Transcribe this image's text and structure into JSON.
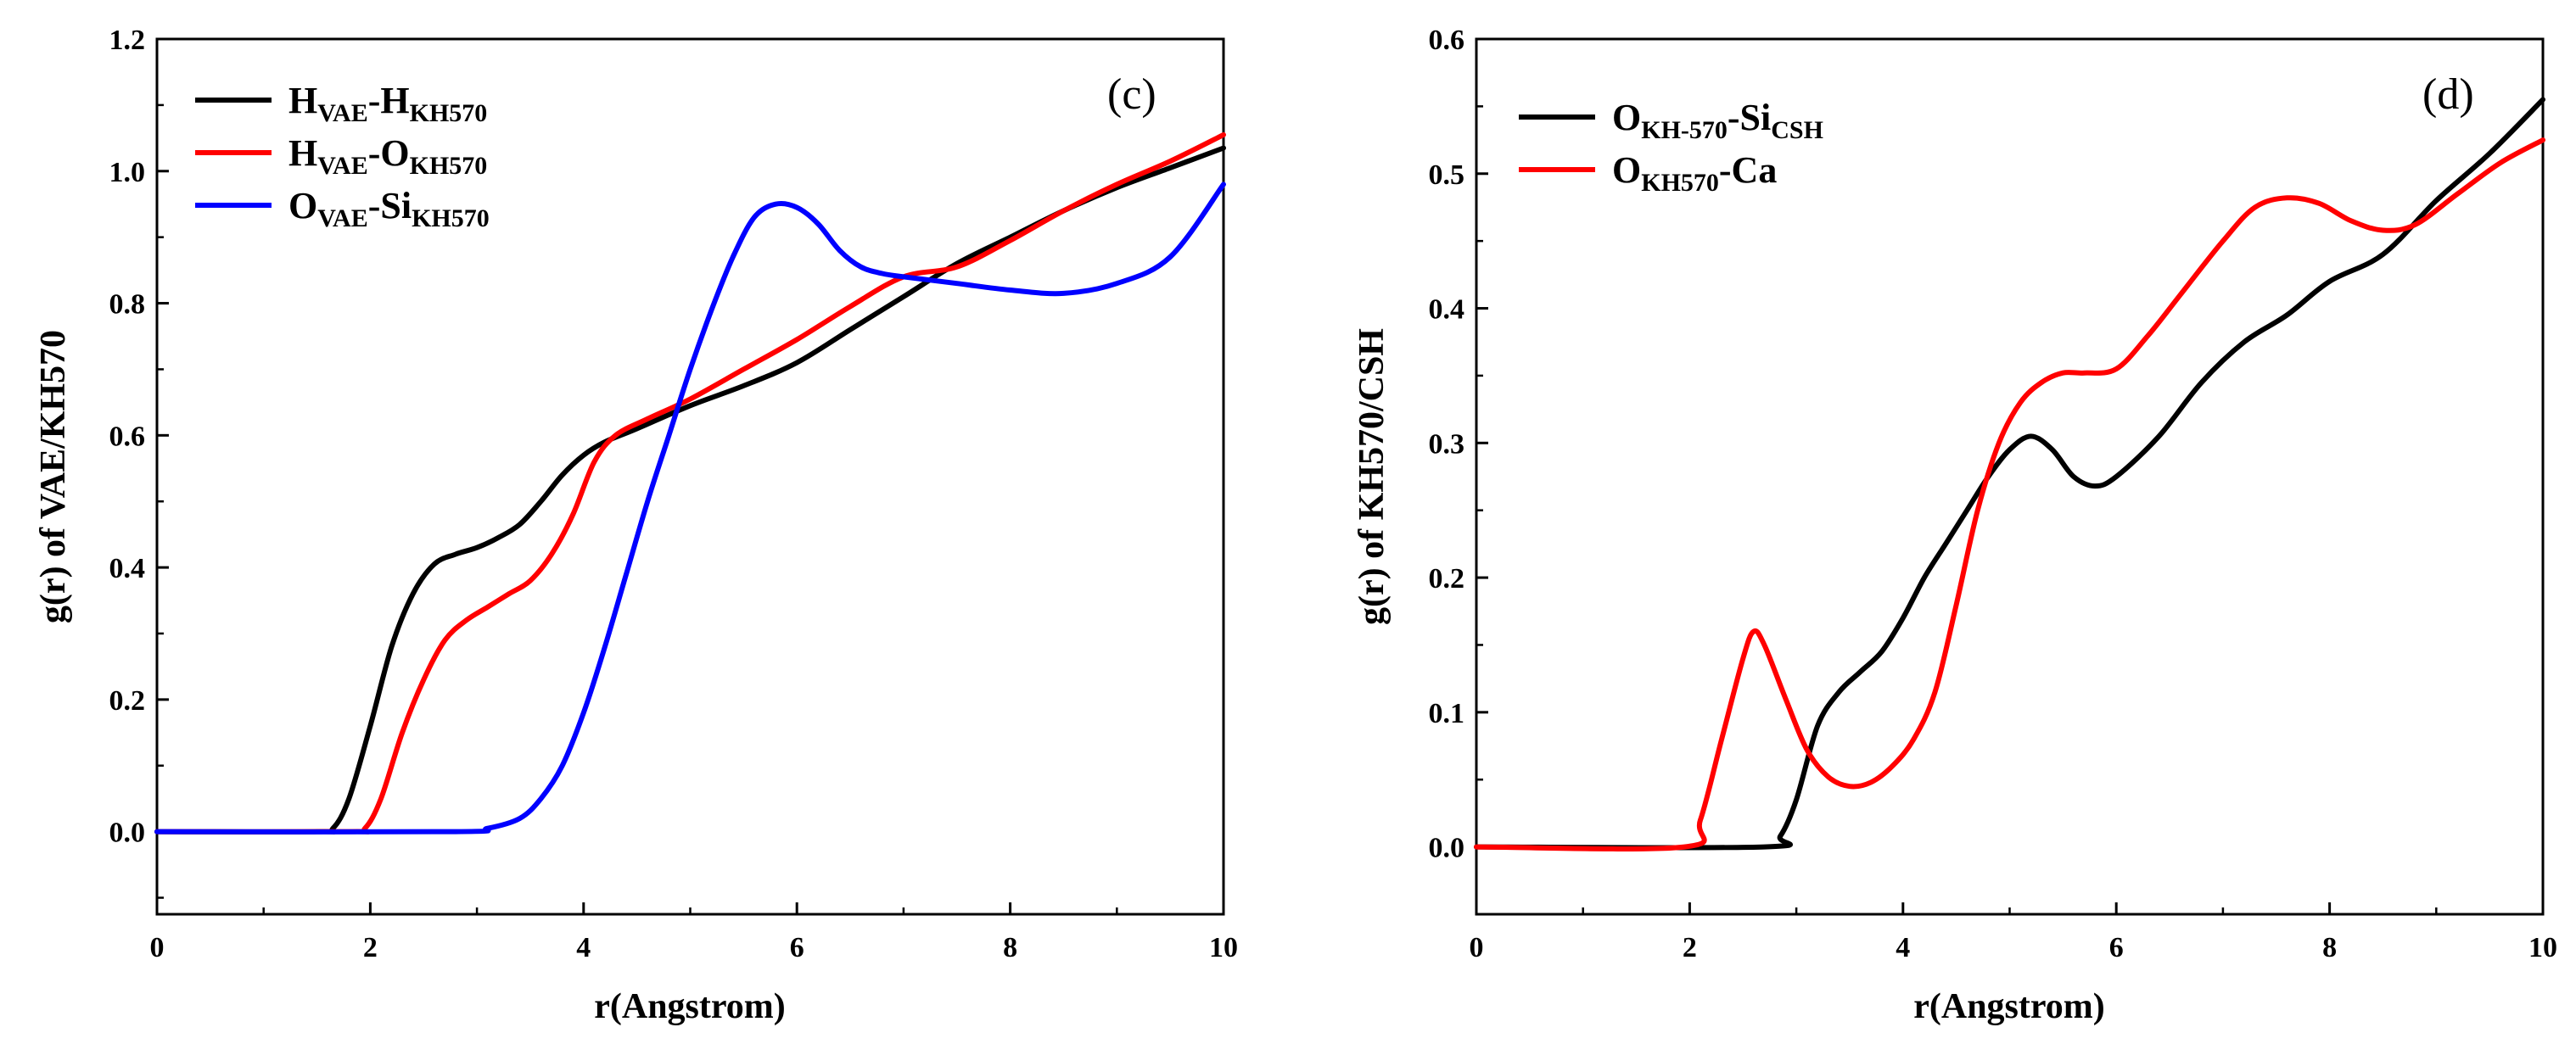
{
  "chart_data": [
    {
      "type": "line",
      "panel_label": "(c)",
      "xlabel": "r(Angstrom)",
      "ylabel": "g(r) of VAE/KH570",
      "xlim": [
        0,
        10
      ],
      "ylim": [
        -0.125,
        1.2
      ],
      "xticks": [
        0,
        2,
        4,
        6,
        8,
        10
      ],
      "yticks": [
        0.0,
        0.2,
        0.4,
        0.6,
        0.8,
        1.0,
        1.2
      ],
      "xtick_labels": [
        "0",
        "2",
        "4",
        "6",
        "8",
        "10"
      ],
      "ytick_labels": [
        "0.0",
        "0.2",
        "0.4",
        "0.6",
        "0.8",
        "1.0",
        "1.2"
      ],
      "legend_position": "top-left",
      "series": [
        {
          "name": "H_VAE-H_KH570",
          "label": [
            [
              "H",
              ""
            ],
            [
              "VAE",
              "sub"
            ],
            [
              "-H",
              ""
            ],
            [
              "KH570",
              "sub"
            ]
          ],
          "color": "#000000",
          "x": [
            0,
            1.5,
            1.65,
            1.8,
            2.0,
            2.2,
            2.4,
            2.6,
            2.8,
            3.0,
            3.2,
            3.4,
            3.6,
            3.8,
            4.0,
            4.2,
            4.5,
            5.0,
            5.5,
            6.0,
            6.5,
            7.0,
            7.5,
            8.0,
            8.5,
            9.0,
            9.5,
            10.0
          ],
          "y": [
            0,
            0,
            0.005,
            0.05,
            0.16,
            0.28,
            0.36,
            0.405,
            0.42,
            0.43,
            0.445,
            0.465,
            0.5,
            0.54,
            0.57,
            0.59,
            0.61,
            0.645,
            0.675,
            0.71,
            0.76,
            0.81,
            0.86,
            0.9,
            0.94,
            0.975,
            1.005,
            1.035
          ]
        },
        {
          "name": "H_VAE-O_KH570",
          "label": [
            [
              "H",
              ""
            ],
            [
              "VAE",
              "sub"
            ],
            [
              "-O",
              ""
            ],
            [
              "KH570",
              "sub"
            ]
          ],
          "color": "#ff0000",
          "x": [
            0,
            1.8,
            1.95,
            2.1,
            2.3,
            2.5,
            2.7,
            2.9,
            3.1,
            3.3,
            3.5,
            3.7,
            3.9,
            4.1,
            4.3,
            4.6,
            5.0,
            5.5,
            6.0,
            6.5,
            7.0,
            7.5,
            8.0,
            8.5,
            9.0,
            9.5,
            10.0
          ],
          "y": [
            0,
            0,
            0.005,
            0.05,
            0.15,
            0.23,
            0.29,
            0.32,
            0.34,
            0.36,
            0.38,
            0.42,
            0.48,
            0.56,
            0.6,
            0.625,
            0.655,
            0.7,
            0.745,
            0.795,
            0.84,
            0.855,
            0.895,
            0.94,
            0.98,
            1.015,
            1.055
          ]
        },
        {
          "name": "O_VAE-Si_KH570",
          "label": [
            [
              "O",
              ""
            ],
            [
              "VAE",
              "sub"
            ],
            [
              "-Si",
              ""
            ],
            [
              "KH570",
              "sub"
            ]
          ],
          "color": "#0000ff",
          "x": [
            0,
            2.8,
            3.1,
            3.4,
            3.6,
            3.8,
            4.0,
            4.2,
            4.4,
            4.6,
            4.8,
            5.0,
            5.2,
            5.4,
            5.6,
            5.8,
            6.0,
            6.2,
            6.4,
            6.6,
            6.8,
            7.0,
            7.5,
            8.0,
            8.5,
            9.0,
            9.5,
            10.0
          ],
          "y": [
            0,
            0,
            0.005,
            0.02,
            0.05,
            0.1,
            0.18,
            0.28,
            0.39,
            0.5,
            0.6,
            0.7,
            0.79,
            0.87,
            0.93,
            0.95,
            0.945,
            0.92,
            0.88,
            0.855,
            0.845,
            0.84,
            0.83,
            0.82,
            0.815,
            0.83,
            0.87,
            0.98
          ]
        }
      ]
    },
    {
      "type": "line",
      "panel_label": "(d)",
      "xlabel": "r(Angstrom)",
      "ylabel": "g(r) of KH570/CSH",
      "xlim": [
        0,
        10
      ],
      "ylim": [
        -0.05,
        0.6
      ],
      "xticks": [
        0,
        2,
        4,
        6,
        8,
        10
      ],
      "yticks": [
        0.0,
        0.1,
        0.2,
        0.3,
        0.4,
        0.5,
        0.6
      ],
      "xtick_labels": [
        "0",
        "2",
        "4",
        "6",
        "8",
        "10"
      ],
      "ytick_labels": [
        "0.0",
        "0.1",
        "0.2",
        "0.3",
        "0.4",
        "0.5",
        "0.6"
      ],
      "legend_position": "top-left",
      "series": [
        {
          "name": "O_KH-570-Si_CSH",
          "label": [
            [
              "O",
              ""
            ],
            [
              "KH-570",
              "sub"
            ],
            [
              "-Si",
              ""
            ],
            [
              "CSH",
              "sub"
            ]
          ],
          "color": "#000000",
          "x": [
            0,
            2.7,
            2.85,
            3.0,
            3.2,
            3.4,
            3.6,
            3.8,
            4.0,
            4.2,
            4.4,
            4.6,
            4.8,
            5.0,
            5.2,
            5.4,
            5.6,
            5.8,
            6.0,
            6.4,
            6.8,
            7.2,
            7.6,
            8.0,
            8.5,
            9.0,
            9.5,
            10.0
          ],
          "y": [
            0,
            0,
            0.008,
            0.035,
            0.09,
            0.115,
            0.13,
            0.145,
            0.17,
            0.2,
            0.225,
            0.25,
            0.275,
            0.295,
            0.305,
            0.295,
            0.275,
            0.268,
            0.275,
            0.305,
            0.345,
            0.375,
            0.395,
            0.42,
            0.44,
            0.48,
            0.515,
            0.555
          ]
        },
        {
          "name": "O_KH570-Ca",
          "label": [
            [
              "O",
              ""
            ],
            [
              "KH570",
              "sub"
            ],
            [
              "-Ca",
              ""
            ]
          ],
          "color": "#ff0000",
          "x": [
            0,
            1.95,
            2.1,
            2.3,
            2.5,
            2.6,
            2.7,
            2.9,
            3.1,
            3.3,
            3.5,
            3.7,
            3.9,
            4.1,
            4.3,
            4.5,
            4.7,
            4.9,
            5.1,
            5.3,
            5.5,
            5.7,
            6.0,
            6.3,
            6.6,
            7.0,
            7.3,
            7.6,
            7.9,
            8.2,
            8.5,
            8.8,
            9.2,
            9.6,
            10.0
          ],
          "y": [
            0,
            0,
            0.02,
            0.08,
            0.14,
            0.16,
            0.15,
            0.11,
            0.072,
            0.052,
            0.045,
            0.048,
            0.06,
            0.08,
            0.115,
            0.18,
            0.25,
            0.3,
            0.33,
            0.345,
            0.352,
            0.352,
            0.355,
            0.38,
            0.41,
            0.45,
            0.475,
            0.482,
            0.478,
            0.465,
            0.458,
            0.462,
            0.485,
            0.508,
            0.525
          ]
        }
      ]
    }
  ]
}
